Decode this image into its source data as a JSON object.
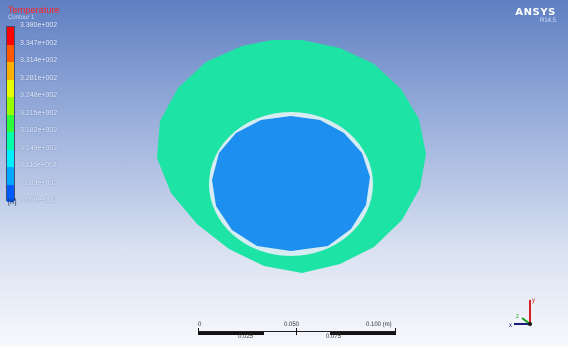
{
  "legend": {
    "title": "Temperature",
    "subtitle": "Contour 1",
    "unit": "[K]",
    "levels": [
      {
        "label": "3.380e+002",
        "color": "#ff0000"
      },
      {
        "label": "3.347e+002",
        "color": "#ff5a00"
      },
      {
        "label": "3.314e+002",
        "color": "#ffb000"
      },
      {
        "label": "3.281e+002",
        "color": "#e8ff00"
      },
      {
        "label": "3.248e+002",
        "color": "#98ff00"
      },
      {
        "label": "3.215e+002",
        "color": "#2eff3a"
      },
      {
        "label": "3.182e+002",
        "color": "#00ffa6"
      },
      {
        "label": "3.149e+002",
        "color": "#00f0ff"
      },
      {
        "label": "3.116e+002",
        "color": "#00a8ff"
      },
      {
        "label": "3.083e+002",
        "color": "#005cff"
      },
      {
        "label": "3.050e+002",
        "color": "#0010ff"
      }
    ]
  },
  "logo": {
    "main": "ANSYS",
    "sub": "R14.5"
  },
  "model": {
    "outer_ring_color": "#1de3a5",
    "inner_gap_color": "#d6ecf2",
    "inner_core_color": "#1c8ff0"
  },
  "scale_bar": {
    "labels": [
      "0",
      "0.050",
      "0.100 (m)"
    ],
    "minor_labels": [
      "0.025",
      "0.075"
    ]
  },
  "triad": {
    "x_label": "x",
    "y_label": "y",
    "z_label": "z"
  }
}
